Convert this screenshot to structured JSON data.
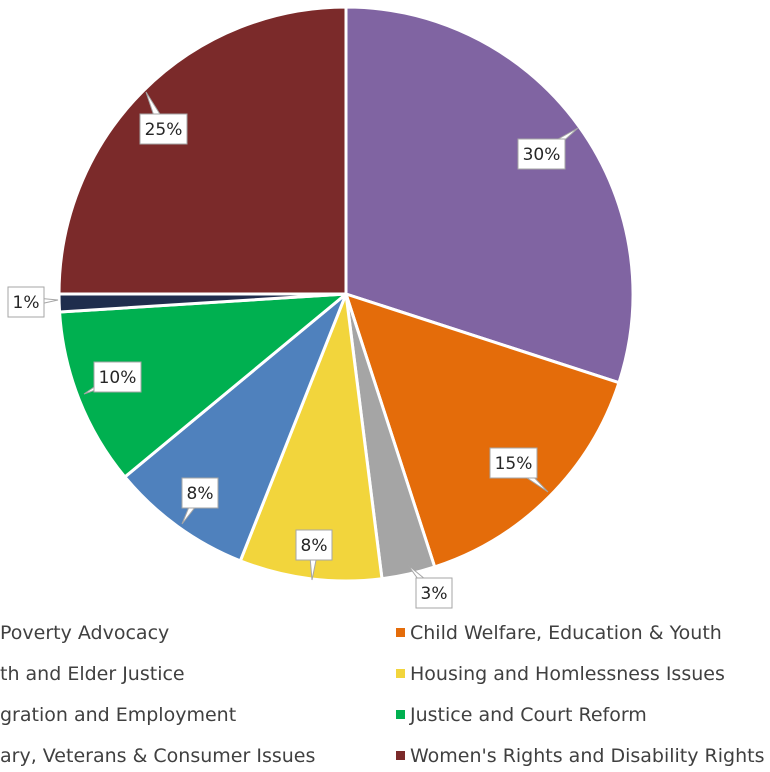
{
  "chart_data": {
    "type": "pie",
    "title": "",
    "series": [
      {
        "name": "Women's Rights and Disability Rights",
        "value": 25,
        "label": "25%",
        "color": "#7b2a2a"
      },
      {
        "name": "Child Welfare, Education & Youth",
        "value": 15,
        "label": "15%",
        "color": "#e46c0a"
      },
      {
        "name": "Housing and Homlessness Issues",
        "value": 8,
        "label": "8%",
        "color": "#f2d53c"
      },
      {
        "name": "Justice and Court Reform",
        "value": 10,
        "label": "10%",
        "color": "#00b050"
      }
    ],
    "slices": [
      {
        "value": 30,
        "label": "30%",
        "color": "#8064a2"
      },
      {
        "value": 15,
        "label": "15%",
        "color": "#e46c0a"
      },
      {
        "value": 3,
        "label": "3%",
        "color": "#a5a5a5"
      },
      {
        "value": 8,
        "label": "8%",
        "color": "#f2d53c"
      },
      {
        "value": 8,
        "label": "8%",
        "color": "#4f81bd"
      },
      {
        "value": 10,
        "label": "10%",
        "color": "#00b050"
      },
      {
        "value": 1,
        "label": "1%",
        "color": "#1f2d4d"
      },
      {
        "value": 25,
        "label": "25%",
        "color": "#7b2a2a"
      }
    ],
    "legend": [
      {
        "text": "Poverty Advocacy",
        "color": "#8064a2"
      },
      {
        "text": "Child Welfare, Education & Youth",
        "color": "#e46c0a"
      },
      {
        "text": "th and Elder Justice",
        "color": "#a5a5a5"
      },
      {
        "text": "Housing and Homlessness Issues",
        "color": "#f2d53c"
      },
      {
        "text": "gration and Employment",
        "color": "#4f81bd"
      },
      {
        "text": "Justice and Court Reform",
        "color": "#00b050"
      },
      {
        "text": "ary, Veterans & Consumer Issues",
        "color": "#1f2d4d"
      },
      {
        "text": "Women's Rights and Disability Rights",
        "color": "#7b2a2a"
      }
    ],
    "legend_position": "bottom"
  }
}
